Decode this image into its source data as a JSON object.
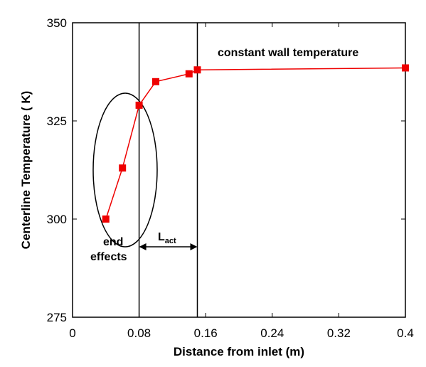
{
  "chart_data": {
    "type": "line",
    "title": "",
    "xlabel": "Distance from inlet (m)",
    "ylabel": "Centerline Temperature ( K)",
    "xlim": [
      0,
      0.4
    ],
    "ylim": [
      275,
      350
    ],
    "x_ticks": [
      "0",
      "0.08",
      "0.16",
      "0.24",
      "0.32",
      "0.4"
    ],
    "x_tick_values": [
      0,
      0.08,
      0.16,
      0.24,
      0.32,
      0.4
    ],
    "y_ticks": [
      "275",
      "300",
      "325",
      "350"
    ],
    "y_tick_values": [
      275,
      300,
      325,
      350
    ],
    "grid": false,
    "legend": "none",
    "series": [
      {
        "color": "#ee0000",
        "marker": "square",
        "x": [
          0.04,
          0.06,
          0.08,
          0.1,
          0.14,
          0.15,
          0.4
        ],
        "y": [
          300,
          313,
          329,
          335,
          337,
          338,
          338.5
        ]
      }
    ],
    "vertical_lines_x": [
      0.08,
      0.15
    ],
    "annotations": {
      "wall_temp": "constant wall temperature",
      "end_line1": "end",
      "end_line2": "effects",
      "lact_main": "L",
      "lact_sub": "act"
    }
  }
}
